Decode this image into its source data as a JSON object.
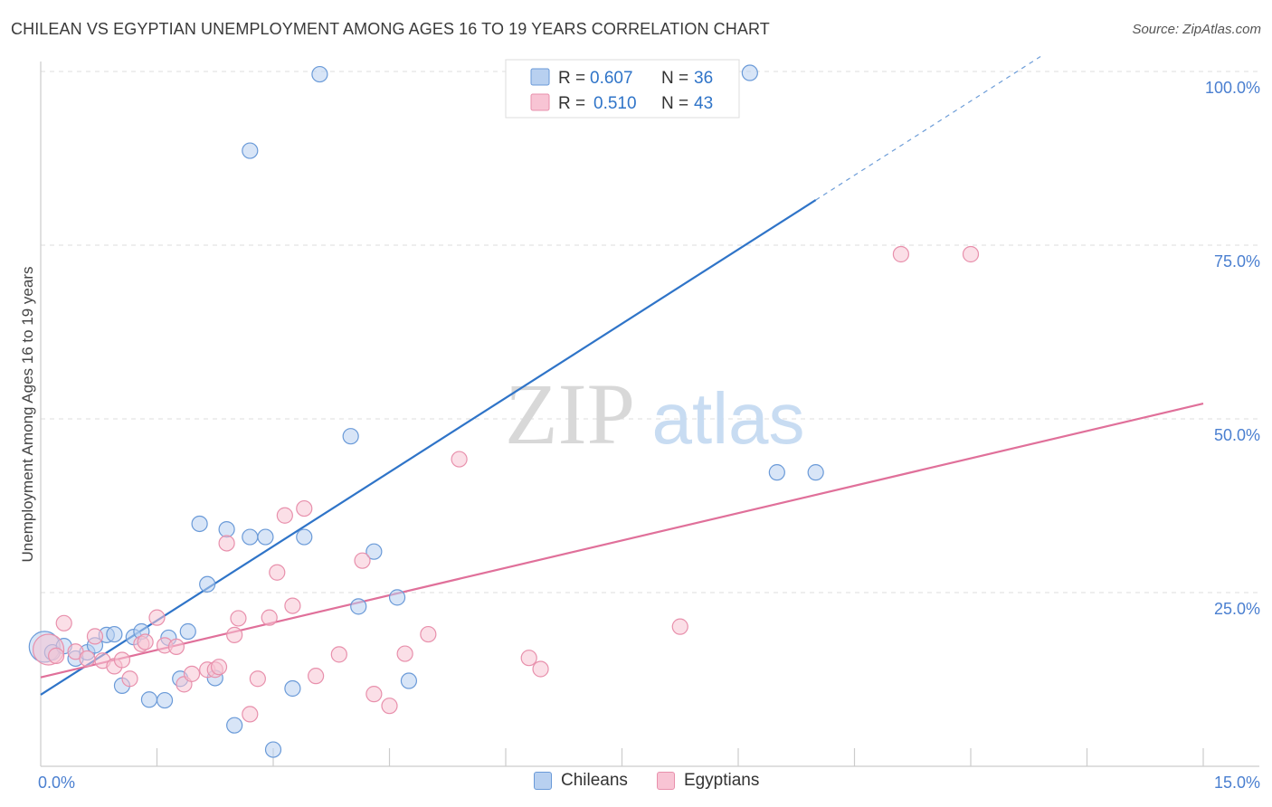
{
  "title": "CHILEAN VS EGYPTIAN UNEMPLOYMENT AMONG AGES 16 TO 19 YEARS CORRELATION CHART",
  "source": "Source: ZipAtlas.com",
  "watermark": {
    "zip": "ZIP",
    "atlas": "atlas"
  },
  "colors": {
    "chilean_fill": "#b8d0f0",
    "chilean_stroke": "#6a9ad8",
    "chilean_line": "#2f74c8",
    "egyptian_fill": "#f8c4d4",
    "egyptian_stroke": "#e890ac",
    "egyptian_line": "#e0709a",
    "tick": "#4a7fd0",
    "grid": "#dddddd"
  },
  "legend": {
    "rows": [
      {
        "r_label": "R = ",
        "r_value": "0.607",
        "n_label": "N = ",
        "n_value": "36"
      },
      {
        "r_label": "R = ",
        "r_value": "0.510",
        "n_label": "N = ",
        "n_value": "43"
      }
    ]
  },
  "chart_data": {
    "type": "scatter",
    "title": "CHILEAN VS EGYPTIAN UNEMPLOYMENT AMONG AGES 16 TO 19 YEARS CORRELATION CHART",
    "xlabel": "",
    "ylabel": "Unemployment Among Ages 16 to 19 years",
    "xlim": [
      0,
      15
    ],
    "ylim": [
      0,
      100
    ],
    "x_tick_labels": [
      {
        "value": 0,
        "label": "0.0%"
      },
      {
        "value": 15,
        "label": "15.0%"
      }
    ],
    "y_tick_labels": [
      {
        "value": 25,
        "label": "25.0%"
      },
      {
        "value": 50,
        "label": "50.0%"
      },
      {
        "value": 75,
        "label": "75.0%"
      },
      {
        "value": 100,
        "label": "100.0%"
      }
    ],
    "grid": true,
    "series": [
      {
        "name": "Chileans",
        "r": 0.607,
        "n": 36,
        "trend": {
          "x0": 0,
          "y0": 10.3,
          "x1": 10.0,
          "y1": 81.5,
          "dash_to_x": 12.9
        },
        "points": [
          {
            "x": 0.05,
            "y": 17.2,
            "big": true
          },
          {
            "x": 0.15,
            "y": 16.4
          },
          {
            "x": 0.3,
            "y": 17.3
          },
          {
            "x": 0.45,
            "y": 15.5
          },
          {
            "x": 0.6,
            "y": 16.4
          },
          {
            "x": 0.7,
            "y": 17.4
          },
          {
            "x": 0.85,
            "y": 18.9
          },
          {
            "x": 0.95,
            "y": 19.0
          },
          {
            "x": 1.05,
            "y": 11.6
          },
          {
            "x": 1.2,
            "y": 18.6
          },
          {
            "x": 1.3,
            "y": 19.4
          },
          {
            "x": 1.4,
            "y": 9.6
          },
          {
            "x": 1.6,
            "y": 9.5
          },
          {
            "x": 1.65,
            "y": 18.5
          },
          {
            "x": 1.8,
            "y": 12.6
          },
          {
            "x": 1.9,
            "y": 19.4
          },
          {
            "x": 2.05,
            "y": 34.9
          },
          {
            "x": 2.15,
            "y": 26.2
          },
          {
            "x": 2.25,
            "y": 12.7
          },
          {
            "x": 2.4,
            "y": 34.1
          },
          {
            "x": 2.5,
            "y": 5.9
          },
          {
            "x": 2.7,
            "y": 33.0
          },
          {
            "x": 2.7,
            "y": 88.6
          },
          {
            "x": 2.9,
            "y": 33.0
          },
          {
            "x": 3.0,
            "y": 2.4
          },
          {
            "x": 3.25,
            "y": 11.2
          },
          {
            "x": 3.4,
            "y": 33.0
          },
          {
            "x": 3.6,
            "y": 99.6
          },
          {
            "x": 4.0,
            "y": 47.5
          },
          {
            "x": 4.1,
            "y": 23.0
          },
          {
            "x": 4.3,
            "y": 30.9
          },
          {
            "x": 4.6,
            "y": 24.3
          },
          {
            "x": 4.75,
            "y": 12.3
          },
          {
            "x": 9.15,
            "y": 99.8
          },
          {
            "x": 9.5,
            "y": 42.3
          },
          {
            "x": 10.0,
            "y": 42.3
          }
        ]
      },
      {
        "name": "Egyptians",
        "r": 0.51,
        "n": 43,
        "trend": {
          "x0": 0,
          "y0": 12.8,
          "x1": 15.0,
          "y1": 52.2
        },
        "points": [
          {
            "x": 0.1,
            "y": 16.8,
            "big": true
          },
          {
            "x": 0.2,
            "y": 15.9
          },
          {
            "x": 0.3,
            "y": 20.6
          },
          {
            "x": 0.45,
            "y": 16.5
          },
          {
            "x": 0.6,
            "y": 15.5
          },
          {
            "x": 0.7,
            "y": 18.7
          },
          {
            "x": 0.8,
            "y": 15.2
          },
          {
            "x": 0.95,
            "y": 14.4
          },
          {
            "x": 1.05,
            "y": 15.3
          },
          {
            "x": 1.15,
            "y": 12.6
          },
          {
            "x": 1.3,
            "y": 17.6
          },
          {
            "x": 1.35,
            "y": 17.9
          },
          {
            "x": 1.5,
            "y": 21.4
          },
          {
            "x": 1.6,
            "y": 17.4
          },
          {
            "x": 1.75,
            "y": 17.2
          },
          {
            "x": 1.85,
            "y": 11.8
          },
          {
            "x": 1.95,
            "y": 13.3
          },
          {
            "x": 2.15,
            "y": 13.9
          },
          {
            "x": 2.25,
            "y": 13.9
          },
          {
            "x": 2.3,
            "y": 14.3
          },
          {
            "x": 2.4,
            "y": 32.1
          },
          {
            "x": 2.5,
            "y": 18.9
          },
          {
            "x": 2.55,
            "y": 21.3
          },
          {
            "x": 2.7,
            "y": 7.5
          },
          {
            "x": 2.8,
            "y": 12.6
          },
          {
            "x": 2.95,
            "y": 21.4
          },
          {
            "x": 3.05,
            "y": 27.9
          },
          {
            "x": 3.15,
            "y": 36.1
          },
          {
            "x": 3.25,
            "y": 23.1
          },
          {
            "x": 3.4,
            "y": 37.1
          },
          {
            "x": 3.55,
            "y": 13.0
          },
          {
            "x": 3.85,
            "y": 16.1
          },
          {
            "x": 4.15,
            "y": 29.6
          },
          {
            "x": 4.3,
            "y": 10.4
          },
          {
            "x": 4.5,
            "y": 8.7
          },
          {
            "x": 4.7,
            "y": 16.2
          },
          {
            "x": 5.0,
            "y": 19.0
          },
          {
            "x": 5.4,
            "y": 44.2
          },
          {
            "x": 6.3,
            "y": 15.6
          },
          {
            "x": 6.45,
            "y": 14.0
          },
          {
            "x": 8.25,
            "y": 20.1
          },
          {
            "x": 11.1,
            "y": 73.7
          },
          {
            "x": 12.0,
            "y": 73.7
          }
        ]
      }
    ]
  }
}
